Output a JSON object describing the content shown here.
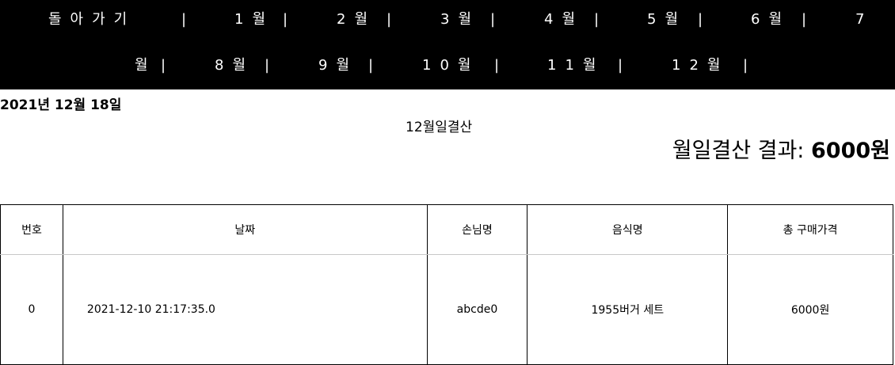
{
  "nav": {
    "back": "돌아가기",
    "months": [
      "1월",
      "2월",
      "3월",
      "4월",
      "5월",
      "6월",
      "7월",
      "8월",
      "9월",
      "10월",
      "11월",
      "12월"
    ],
    "month_7_a": "7",
    "month_7_b": "월",
    "separator": "|"
  },
  "date_heading": "2021년 12월 18일",
  "subtitle": "12월일결산",
  "result": {
    "label": "월일결산 결과: ",
    "amount": "6000원"
  },
  "table": {
    "headers": [
      "번호",
      "날짜",
      "손님명",
      "음식명",
      "총 구매가격"
    ],
    "rows": [
      {
        "no": "0",
        "date": "2021-12-10 21:17:35.0",
        "customer": "abcde0",
        "food": "1955버거 세트",
        "total": "6000원"
      }
    ]
  }
}
